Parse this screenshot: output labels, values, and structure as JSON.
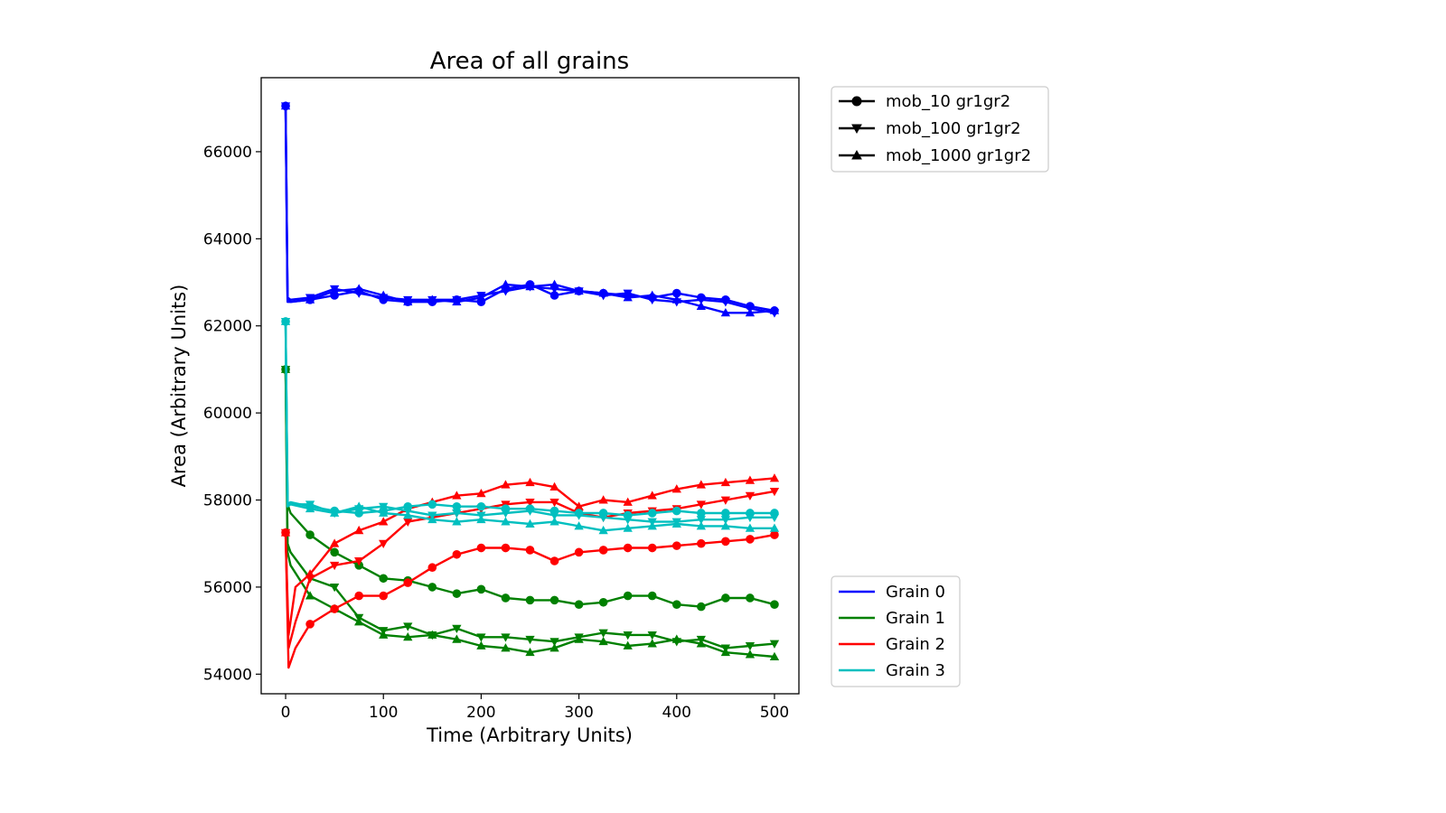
{
  "chart_data": {
    "type": "line",
    "title": "Area of all grains",
    "xlabel": "Time (Arbitrary Units)",
    "ylabel": "Area (Arbitrary Units)",
    "xlim": [
      -25,
      525
    ],
    "ylim": [
      53550,
      67700
    ],
    "xticks": [
      0,
      100,
      200,
      300,
      400,
      500
    ],
    "yticks": [
      54000,
      56000,
      58000,
      60000,
      62000,
      64000,
      66000
    ],
    "grid": false,
    "colors": {
      "Grain 0": "#0000ff",
      "Grain 1": "#008000",
      "Grain 2": "#ff0000",
      "Grain 3": "#00bfbf"
    },
    "run_legend": {
      "placement": "upper-right outside",
      "entries": [
        {
          "label": "mob_10 gr1gr2",
          "marker": "circle"
        },
        {
          "label": "mob_100 gr1gr2",
          "marker": "triangle-down"
        },
        {
          "label": "mob_1000 gr1gr2",
          "marker": "triangle-up"
        }
      ]
    },
    "grain_legend": {
      "placement": "lower-right outside",
      "entries": [
        "Grain 0",
        "Grain 1",
        "Grain 2",
        "Grain 3"
      ]
    },
    "series": [
      {
        "grain": "Grain 0",
        "run": "mob_10 gr1gr2",
        "marker": "circle",
        "x": [
          0,
          2,
          5,
          25,
          50,
          75,
          100,
          125,
          150,
          175,
          200,
          225,
          250,
          275,
          300,
          325,
          350,
          375,
          400,
          425,
          450,
          475,
          500
        ],
        "y": [
          67050,
          62600,
          62550,
          62600,
          62700,
          62800,
          62600,
          62550,
          62550,
          62600,
          62550,
          62850,
          62950,
          62700,
          62800,
          62750,
          62700,
          62650,
          62750,
          62650,
          62600,
          62450,
          62350
        ]
      },
      {
        "grain": "Grain 0",
        "run": "mob_100 gr1gr2",
        "marker": "triangle-down",
        "x": [
          0,
          2,
          5,
          25,
          50,
          75,
          100,
          125,
          150,
          175,
          200,
          225,
          250,
          275,
          300,
          325,
          350,
          375,
          400,
          425,
          450,
          475,
          500
        ],
        "y": [
          67050,
          62650,
          62600,
          62650,
          62850,
          62750,
          62650,
          62600,
          62600,
          62600,
          62700,
          62800,
          62900,
          62850,
          62800,
          62700,
          62750,
          62600,
          62550,
          62600,
          62550,
          62400,
          62300
        ]
      },
      {
        "grain": "Grain 0",
        "run": "mob_1000 gr1gr2",
        "marker": "triangle-up",
        "x": [
          0,
          2,
          5,
          25,
          50,
          75,
          100,
          125,
          150,
          175,
          200,
          225,
          250,
          275,
          300,
          325,
          350,
          375,
          400,
          425,
          450,
          475,
          500
        ],
        "y": [
          67050,
          62550,
          62550,
          62600,
          62800,
          62850,
          62700,
          62550,
          62600,
          62550,
          62650,
          62950,
          62900,
          62950,
          62800,
          62750,
          62650,
          62700,
          62600,
          62450,
          62300,
          62300,
          62350
        ]
      },
      {
        "grain": "Grain 1",
        "run": "mob_10 gr1gr2",
        "marker": "circle",
        "x": [
          0,
          2,
          5,
          25,
          50,
          75,
          100,
          125,
          150,
          175,
          200,
          225,
          250,
          275,
          300,
          325,
          350,
          375,
          400,
          425,
          450,
          475,
          500
        ],
        "y": [
          61000,
          57900,
          57700,
          57200,
          56800,
          56500,
          56200,
          56150,
          56000,
          55850,
          55950,
          55750,
          55700,
          55700,
          55600,
          55650,
          55800,
          55800,
          55600,
          55550,
          55750,
          55750,
          55600
        ]
      },
      {
        "grain": "Grain 1",
        "run": "mob_100 gr1gr2",
        "marker": "triangle-down",
        "x": [
          0,
          2,
          5,
          25,
          50,
          75,
          100,
          125,
          150,
          175,
          200,
          225,
          250,
          275,
          300,
          325,
          350,
          375,
          400,
          425,
          450,
          475,
          500
        ],
        "y": [
          61000,
          57000,
          56800,
          56200,
          56000,
          55300,
          55000,
          55100,
          54900,
          55050,
          54850,
          54850,
          54800,
          54750,
          54850,
          54950,
          54900,
          54900,
          54750,
          54800,
          54600,
          54650,
          54700
        ]
      },
      {
        "grain": "Grain 1",
        "run": "mob_1000 gr1gr2",
        "marker": "triangle-up",
        "x": [
          0,
          2,
          5,
          25,
          50,
          75,
          100,
          125,
          150,
          175,
          200,
          225,
          250,
          275,
          300,
          325,
          350,
          375,
          400,
          425,
          450,
          475,
          500
        ],
        "y": [
          61000,
          56800,
          56500,
          55800,
          55500,
          55200,
          54900,
          54850,
          54900,
          54800,
          54650,
          54600,
          54500,
          54600,
          54800,
          54750,
          54650,
          54700,
          54800,
          54700,
          54500,
          54450,
          54400
        ]
      },
      {
        "grain": "Grain 2",
        "run": "mob_10 gr1gr2",
        "marker": "circle",
        "x": [
          0,
          3,
          10,
          25,
          50,
          75,
          100,
          125,
          150,
          175,
          200,
          225,
          250,
          275,
          300,
          325,
          350,
          375,
          400,
          425,
          450,
          475,
          500
        ],
        "y": [
          57250,
          54150,
          54600,
          55150,
          55500,
          55800,
          55800,
          56100,
          56450,
          56750,
          56900,
          56900,
          56850,
          56600,
          56800,
          56850,
          56900,
          56900,
          56950,
          57000,
          57050,
          57100,
          57200
        ]
      },
      {
        "grain": "Grain 2",
        "run": "mob_100 gr1gr2",
        "marker": "triangle-down",
        "x": [
          0,
          3,
          10,
          25,
          50,
          75,
          100,
          125,
          150,
          175,
          200,
          225,
          250,
          275,
          300,
          325,
          350,
          375,
          400,
          425,
          450,
          475,
          500
        ],
        "y": [
          57250,
          54600,
          55200,
          56200,
          56500,
          56600,
          57000,
          57500,
          57600,
          57700,
          57800,
          57900,
          57950,
          57950,
          57700,
          57600,
          57700,
          57750,
          57800,
          57900,
          58000,
          58100,
          58200
        ]
      },
      {
        "grain": "Grain 2",
        "run": "mob_1000 gr1gr2",
        "marker": "triangle-up",
        "x": [
          0,
          3,
          10,
          25,
          50,
          75,
          100,
          125,
          150,
          175,
          200,
          225,
          250,
          275,
          300,
          325,
          350,
          375,
          400,
          425,
          450,
          475,
          500
        ],
        "y": [
          57250,
          54900,
          56000,
          56300,
          57000,
          57300,
          57500,
          57800,
          57950,
          58100,
          58150,
          58350,
          58400,
          58300,
          57850,
          58000,
          57950,
          58100,
          58250,
          58350,
          58400,
          58450,
          58500
        ]
      },
      {
        "grain": "Grain 3",
        "run": "mob_10 gr1gr2",
        "marker": "circle",
        "x": [
          0,
          2,
          5,
          25,
          50,
          75,
          100,
          125,
          150,
          175,
          200,
          225,
          250,
          275,
          300,
          325,
          350,
          375,
          400,
          425,
          450,
          475,
          500
        ],
        "y": [
          62100,
          57900,
          57950,
          57850,
          57750,
          57700,
          57750,
          57850,
          57900,
          57850,
          57850,
          57800,
          57800,
          57750,
          57700,
          57700,
          57650,
          57700,
          57750,
          57700,
          57700,
          57700,
          57700
        ]
      },
      {
        "grain": "Grain 3",
        "run": "mob_100 gr1gr2",
        "marker": "triangle-down",
        "x": [
          0,
          2,
          5,
          25,
          50,
          75,
          100,
          125,
          150,
          175,
          200,
          225,
          250,
          275,
          300,
          325,
          350,
          375,
          400,
          425,
          450,
          475,
          500
        ],
        "y": [
          62100,
          57950,
          57900,
          57900,
          57700,
          57800,
          57850,
          57750,
          57650,
          57700,
          57650,
          57700,
          57750,
          57650,
          57650,
          57600,
          57550,
          57500,
          57500,
          57550,
          57550,
          57600,
          57600
        ]
      },
      {
        "grain": "Grain 3",
        "run": "mob_1000 gr1gr2",
        "marker": "triangle-up",
        "x": [
          0,
          2,
          5,
          25,
          50,
          75,
          100,
          125,
          150,
          175,
          200,
          225,
          250,
          275,
          300,
          325,
          350,
          375,
          400,
          425,
          450,
          475,
          500
        ],
        "y": [
          62100,
          57850,
          57900,
          57800,
          57700,
          57850,
          57700,
          57650,
          57550,
          57500,
          57550,
          57500,
          57450,
          57500,
          57400,
          57300,
          57350,
          57400,
          57450,
          57400,
          57400,
          57350,
          57350
        ]
      }
    ]
  }
}
